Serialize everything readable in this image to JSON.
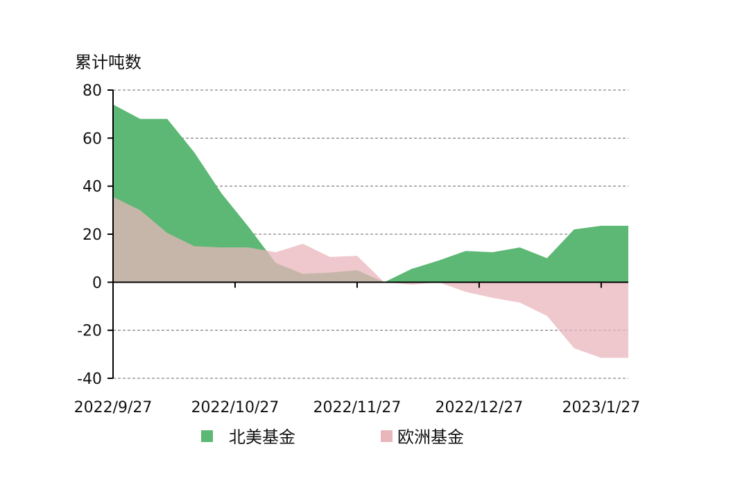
{
  "chart_data": {
    "type": "area",
    "ylabel": "累计吨数",
    "ylim": [
      -40,
      80
    ],
    "yticks": [
      80,
      60,
      40,
      20,
      0,
      -20,
      -40
    ],
    "ytick_labels": [
      "80",
      "60",
      "40",
      "20",
      "0",
      "-20",
      "-40"
    ],
    "x_tick_labels": [
      {
        "x": 0,
        "label": "2022/9/27"
      },
      {
        "x": 4.5,
        "label": "2022/10/27"
      },
      {
        "x": 9,
        "label": "2022/11/27"
      },
      {
        "x": 13.5,
        "label": "2022/12/27"
      },
      {
        "x": 18,
        "label": "2023/1/27"
      }
    ],
    "x": [
      0,
      1,
      2,
      3,
      4,
      5,
      6,
      7,
      8,
      9,
      10,
      11,
      12,
      13,
      14,
      15,
      16,
      17,
      18,
      19
    ],
    "grid": "horizontal-dashed",
    "legend_position": "bottom",
    "series": [
      {
        "name": "北美基金",
        "color": "#5cb874",
        "values": [
          74,
          68,
          68,
          54,
          37,
          23,
          8,
          3.5,
          4,
          5,
          0,
          5.5,
          9,
          13,
          12.5,
          14.5,
          10,
          22,
          23.5,
          23.5
        ]
      },
      {
        "name": "欧洲基金",
        "color": "#e8b6bb",
        "values": [
          35.5,
          30,
          20.5,
          15,
          14.5,
          14.5,
          12.5,
          16,
          10.5,
          11,
          0,
          -1,
          0,
          -4,
          -6.5,
          -8.5,
          -14,
          -27.5,
          -31.5,
          -31.5
        ]
      }
    ]
  }
}
